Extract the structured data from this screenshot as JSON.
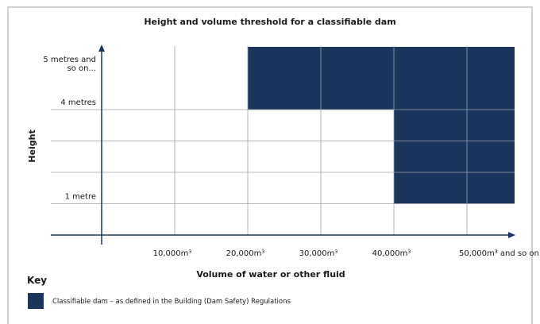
{
  "chart_data": {
    "type": "area",
    "title": "Height and volume threshold for a classifiable dam",
    "xlabel": "Volume of water or other fluid",
    "ylabel": "Height",
    "x_ticks": [
      "10,000m³",
      "20,000m³",
      "30,000m³",
      "40,000m³",
      "50,000m³ and so on..."
    ],
    "x_tick_values": [
      10000,
      20000,
      30000,
      40000,
      50000
    ],
    "y_ticks": [
      {
        "value": 1,
        "label": "1 metre"
      },
      {
        "value": 4,
        "label": "4 metres"
      },
      {
        "value": 5,
        "label": "5 metres and|so on..."
      }
    ],
    "y_grid_values": [
      1,
      2,
      3,
      4
    ],
    "x_grid_values": [
      10000,
      20000,
      30000,
      40000,
      50000
    ],
    "xlim": [
      0,
      57000
    ],
    "ylim": [
      0,
      6
    ],
    "regions": [
      {
        "x_from": 20000,
        "x_to": 57000,
        "y_from": 4,
        "y_to": 6
      },
      {
        "x_from": 40000,
        "x_to": 57000,
        "y_from": 1,
        "y_to": 4
      }
    ],
    "fill_color": "#1b365d",
    "grid": true
  },
  "key": {
    "title": "Key",
    "label": "Classifiable dam – as defined in the Building (Dam Safety) Regulations"
  }
}
